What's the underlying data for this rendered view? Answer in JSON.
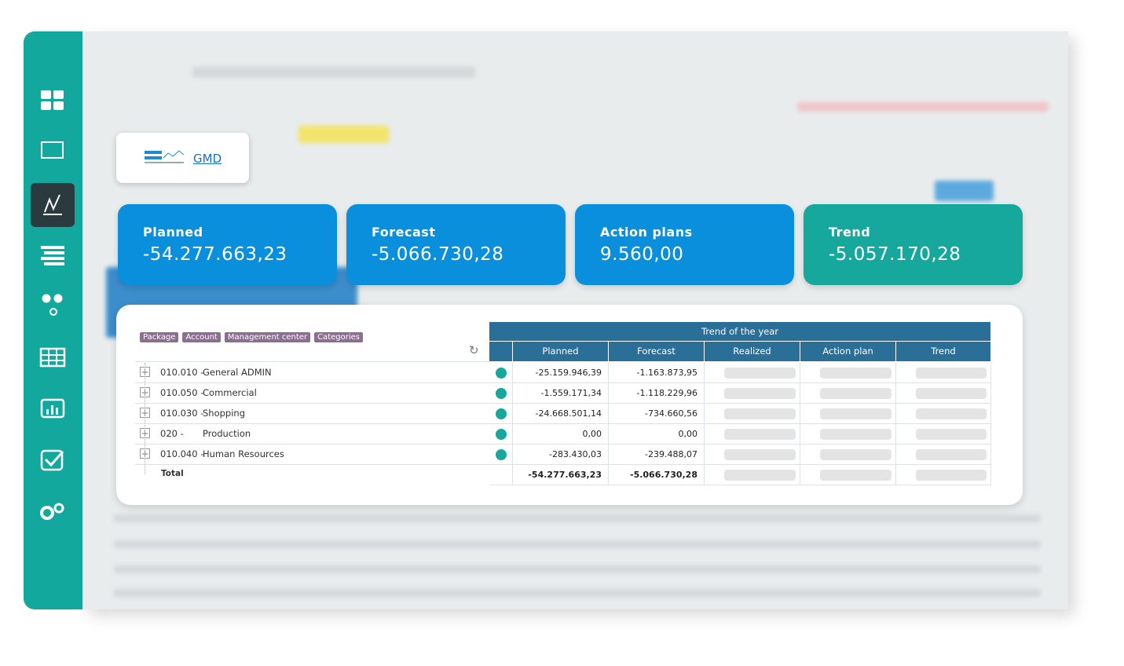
{
  "logo_link": "GMD",
  "kpis": [
    {
      "label": "Planned",
      "value": "-54.277.663,23"
    },
    {
      "label": "Forecast",
      "value": "-5.066.730,28"
    },
    {
      "label": "Action plans",
      "value": "9.560,00"
    },
    {
      "label": "Trend",
      "value": "-5.057.170,28"
    }
  ],
  "table": {
    "filters": [
      "Package",
      "Account",
      "Management center",
      "Categories"
    ],
    "group_header": "Trend of the year",
    "columns": [
      "Planned",
      "Forecast",
      "Realized",
      "Action plan",
      "Trend"
    ],
    "rows": [
      {
        "code": "010.010 -",
        "name": "General ADMIN",
        "planned": "-25.159.946,39",
        "forecast": "-1.163.873,95"
      },
      {
        "code": "010.050 -",
        "name": "Commercial",
        "planned": "-1.559.171,34",
        "forecast": "-1.118.229,96"
      },
      {
        "code": "010.030 -",
        "name": "Shopping",
        "planned": "-24.668.501,14",
        "forecast": "-734.660,56"
      },
      {
        "code": "020 -",
        "name": "Production",
        "planned": "0,00",
        "forecast": "0,00"
      },
      {
        "code": "010.040 -",
        "name": "Human Resources",
        "planned": "-283.430,03",
        "forecast": "-239.488,07"
      }
    ],
    "total": {
      "label": "Total",
      "planned": "-54.277.663,23",
      "forecast": "-5.066.730,28"
    }
  }
}
